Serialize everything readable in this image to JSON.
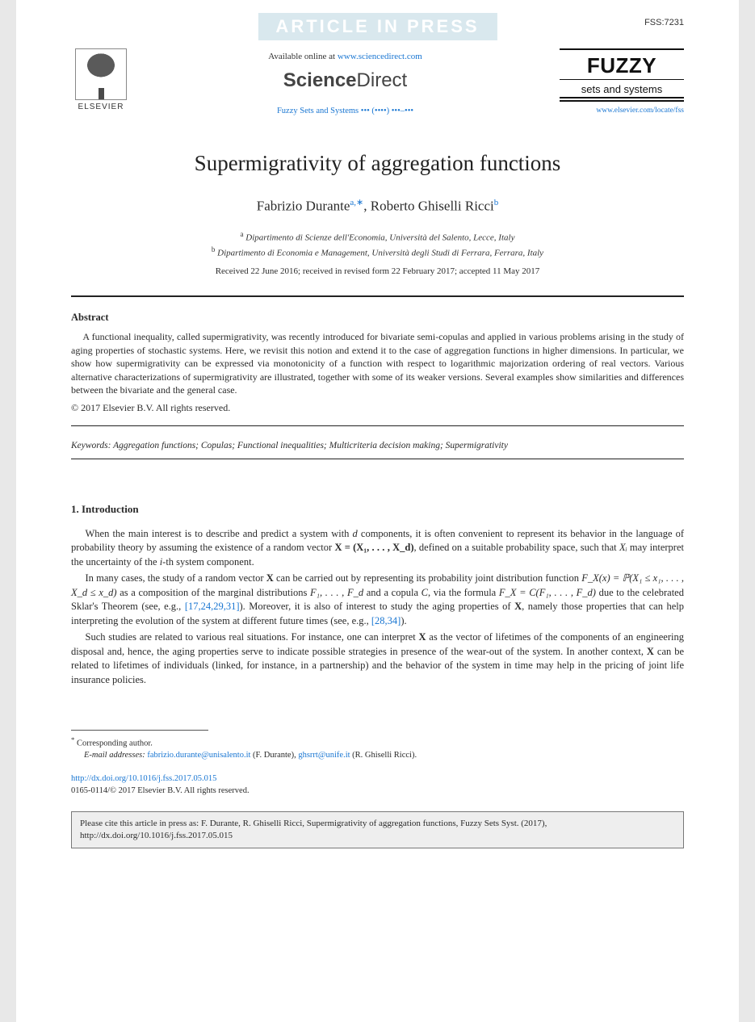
{
  "watermark": "ARTICLE IN PRESS",
  "ref_code": "FSS:7231",
  "header": {
    "elsevier_label": "ELSEVIER",
    "available_prefix": "Available online at ",
    "available_url": "www.sciencedirect.com",
    "sciencedirect": {
      "bold": "Science",
      "light": "Direct"
    },
    "journal_ref": "Fuzzy Sets and Systems ••• (••••) •••–•••",
    "fuzzy_title": "FUZZY",
    "fuzzy_sub": "sets and systems",
    "journal_url": "www.elsevier.com/locate/fss"
  },
  "title": "Supermigrativity of aggregation functions",
  "authors_html": "Fabrizio Durante",
  "author1": "Fabrizio Durante",
  "author1_sup": "a,∗",
  "author2": "Roberto Ghiselli Ricci",
  "author2_sup": "b",
  "authors_sep": ", ",
  "affiliations": {
    "a": "Dipartimento di Scienze dell'Economia, Università del Salento, Lecce, Italy",
    "b": "Dipartimento di Economia e Management, Università degli Studi di Ferrara, Ferrara, Italy"
  },
  "dates": "Received 22 June 2016; received in revised form 22 February 2017; accepted 11 May 2017",
  "abstract_label": "Abstract",
  "abstract_body": "A functional inequality, called supermigrativity, was recently introduced for bivariate semi-copulas and applied in various problems arising in the study of aging properties of stochastic systems. Here, we revisit this notion and extend it to the case of aggregation functions in higher dimensions. In particular, we show how supermigrativity can be expressed via monotonicity of a function with respect to logarithmic majorization ordering of real vectors. Various alternative characterizations of supermigrativity are illustrated, together with some of its weaker versions. Several examples show similarities and differences between the bivariate and the general case.",
  "copyright_abs": "© 2017 Elsevier B.V. All rights reserved.",
  "keywords_label": "Keywords:",
  "keywords": "Aggregation functions; Copulas; Functional inequalities; Multicriteria decision making; Supermigrativity",
  "section1_head": "1.  Introduction",
  "paragraphs": {
    "p1_a": "When the main interest is to describe and predict a system with ",
    "p1_b": " components, it is often convenient to represent its behavior in the language of probability theory by assuming the existence of a random vector ",
    "p1_c": ", defined on a suitable probability space, such that ",
    "p1_d": " may interpret the uncertainty of the ",
    "p1_e": "-th system component.",
    "p2_a": "In many cases, the study of a random vector ",
    "p2_b": " can be carried out by representing its probability joint distribution function ",
    "p2_c": " as a composition of the marginal distributions ",
    "p2_d": " and a copula ",
    "p2_e": ", via the formula ",
    "p2_f": " due to the celebrated Sklar's Theorem (see, e.g., ",
    "p2_refs1": "[17,24,29,31]",
    "p2_g": "). Moreover, it is also of interest to study the aging properties of ",
    "p2_h": ", namely those properties that can help interpreting the evolution of the system at different future times (see, e.g., ",
    "p2_refs2": "[28,34]",
    "p2_i": ").",
    "p3_a": "Such studies are related to various real situations. For instance, one can interpret ",
    "p3_b": " as the vector of lifetimes of the components of an engineering disposal and, hence, the aging properties serve to indicate possible strategies in presence of the wear-out of the system. In another context, ",
    "p3_c": " can be related to lifetimes of individuals (linked, for instance, in a partnership) and the behavior of the system in time may help in the pricing of joint life insurance policies."
  },
  "math": {
    "d": "d",
    "Xvec": "X = (X₁, . . . , X_d)",
    "Xbold": "X",
    "Xi": "Xᵢ",
    "i": "i",
    "FX": "F_X(x) = ℙ(X₁ ≤ x₁, . . . , X_d ≤ x_d)",
    "Fmarg": "F₁, . . . , F_d",
    "C": "C",
    "FXC": "F_X = C(F₁, . . . , F_d)"
  },
  "footnote": {
    "corr": "Corresponding author.",
    "email_label": "E-mail addresses:",
    "email1": "fabrizio.durante@unisalento.it",
    "email1_name": "(F. Durante),",
    "email2": "ghsrrt@unife.it",
    "email2_name": "(R. Ghiselli Ricci)."
  },
  "doi": {
    "url": "http://dx.doi.org/10.1016/j.fss.2017.05.015",
    "line2": "0165-0114/© 2017 Elsevier B.V. All rights reserved."
  },
  "citebox": "Please cite this article in press as: F. Durante, R. Ghiselli Ricci, Supermigrativity of aggregation functions, Fuzzy Sets Syst. (2017), http://dx.doi.org/10.1016/j.fss.2017.05.015",
  "colors": {
    "background": "#e8e8e8",
    "page": "#ffffff",
    "link": "#1976d2",
    "watermark_bg": "#d9e8ee",
    "watermark_fg": "#ffffff",
    "rule": "#222222",
    "citebox_bg": "#eeeeee",
    "text": "#2a2a2a"
  },
  "typography": {
    "body_family": "Times New Roman",
    "title_pt": 27,
    "authors_pt": 17,
    "body_pt": 12.5,
    "abstract_pt": 12,
    "footnote_pt": 10.5
  }
}
